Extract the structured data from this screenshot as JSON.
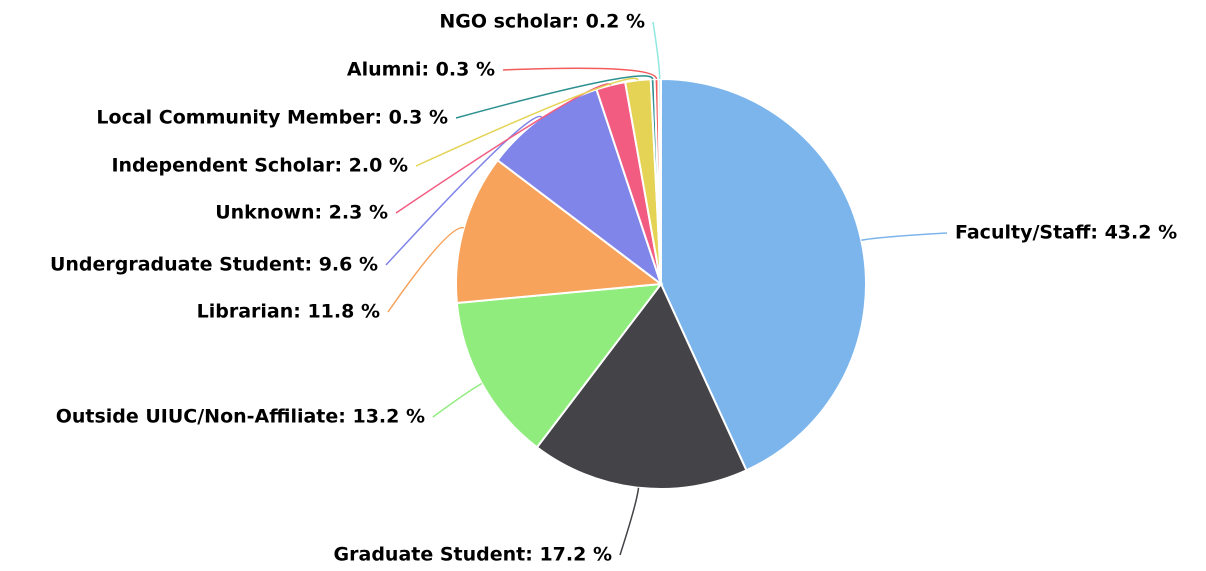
{
  "chart_data": {
    "type": "pie",
    "values": [
      43.2,
      17.2,
      13.2,
      11.8,
      9.6,
      2.3,
      2.0,
      0.3,
      0.3,
      0.2
    ],
    "value_labels": [
      "Faculty/Staff: 43.2 %",
      "Graduate Student: 17.2 %",
      "Outside UIUC/Non-Affiliate: 13.2 %",
      "Librarian: 11.8 %",
      "Undergraduate Student: 9.6 %",
      "Unknown: 2.3 %",
      "Independent Scholar: 2.0 %",
      "Local Community Member: 0.3 %",
      "Alumni: 0.3 %",
      "NGO scholar: 0.2 %"
    ],
    "colors": [
      "#7cb5ec",
      "#434348",
      "#90ed7d",
      "#f7a35c",
      "#8085e9",
      "#f15c80",
      "#e4d354",
      "#2b908f",
      "#f45b5b",
      "#91e8e1"
    ]
  }
}
